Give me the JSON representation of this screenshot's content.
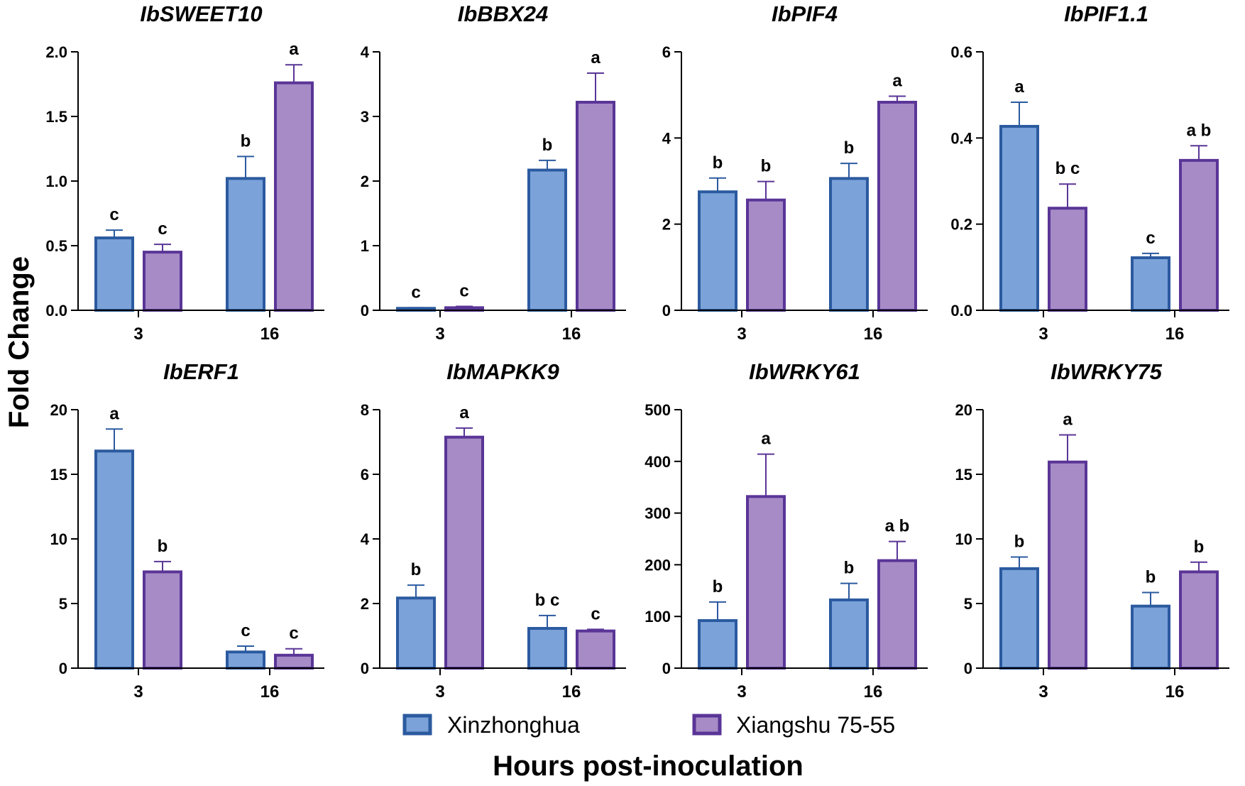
{
  "figure": {
    "ylabel": "Fold Change",
    "xlabel": "Hours post-inoculation"
  },
  "legend": {
    "placement": "bottom-center",
    "entries": [
      {
        "name": "Xinzhonghua",
        "fill": "#7ba3d9",
        "stroke": "#2b5a9f"
      },
      {
        "name": "Xiangshu 75-55",
        "fill": "#a68bc6",
        "stroke": "#5a3597"
      }
    ]
  },
  "chart_data": [
    {
      "type": "bar",
      "title": "IbSWEET10",
      "categories": [
        "3",
        "16"
      ],
      "ylim": [
        0,
        2.0
      ],
      "yticks": [
        "0.0",
        "0.5",
        "1.0",
        "1.5",
        "2.0"
      ],
      "series": [
        {
          "name": "Xinzhonghua",
          "values": [
            0.56,
            1.02
          ],
          "errors": [
            0.06,
            0.17
          ],
          "letters": [
            "c",
            "b"
          ]
        },
        {
          "name": "Xiangshu 75-55",
          "values": [
            0.45,
            1.76
          ],
          "errors": [
            0.06,
            0.14
          ],
          "letters": [
            "c",
            "a"
          ]
        }
      ]
    },
    {
      "type": "bar",
      "title": "IbBBX24",
      "categories": [
        "3",
        "16"
      ],
      "ylim": [
        0,
        4
      ],
      "yticks": [
        "0",
        "1",
        "2",
        "3",
        "4"
      ],
      "series": [
        {
          "name": "Xinzhonghua",
          "values": [
            0.03,
            2.17
          ],
          "errors": [
            0.01,
            0.15
          ],
          "letters": [
            "c",
            "b"
          ]
        },
        {
          "name": "Xiangshu 75-55",
          "values": [
            0.04,
            3.22
          ],
          "errors": [
            0.02,
            0.45
          ],
          "letters": [
            "c",
            "a"
          ]
        }
      ]
    },
    {
      "type": "bar",
      "title": "IbPIF4",
      "categories": [
        "3",
        "16"
      ],
      "ylim": [
        0,
        6
      ],
      "yticks": [
        "0",
        "2",
        "4",
        "6"
      ],
      "series": [
        {
          "name": "Xinzhonghua",
          "values": [
            2.75,
            3.06
          ],
          "errors": [
            0.32,
            0.35
          ],
          "letters": [
            "b",
            "b"
          ]
        },
        {
          "name": "Xiangshu 75-55",
          "values": [
            2.56,
            4.83
          ],
          "errors": [
            0.43,
            0.14
          ],
          "letters": [
            "b",
            "a"
          ]
        }
      ]
    },
    {
      "type": "bar",
      "title": "IbPIF1.1",
      "categories": [
        "3",
        "16"
      ],
      "ylim": [
        0,
        0.6
      ],
      "yticks": [
        "0.0",
        "0.2",
        "0.4",
        "0.6"
      ],
      "series": [
        {
          "name": "Xinzhonghua",
          "values": [
            0.427,
            0.122
          ],
          "errors": [
            0.056,
            0.01
          ],
          "letters": [
            "a",
            "c"
          ]
        },
        {
          "name": "Xiangshu 75-55",
          "values": [
            0.237,
            0.348
          ],
          "errors": [
            0.056,
            0.034
          ],
          "letters": [
            "b c",
            "a b"
          ]
        }
      ]
    },
    {
      "type": "bar",
      "title": "IbERF1",
      "categories": [
        "3",
        "16"
      ],
      "ylim": [
        0,
        20
      ],
      "yticks": [
        "0",
        "5",
        "10",
        "15",
        "20"
      ],
      "series": [
        {
          "name": "Xinzhonghua",
          "values": [
            16.8,
            1.25
          ],
          "errors": [
            1.7,
            0.45
          ],
          "letters": [
            "a",
            "c"
          ]
        },
        {
          "name": "Xiangshu 75-55",
          "values": [
            7.45,
            1.0
          ],
          "errors": [
            0.8,
            0.5
          ],
          "letters": [
            "b",
            "c"
          ]
        }
      ]
    },
    {
      "type": "bar",
      "title": "IbMAPKK9",
      "categories": [
        "3",
        "16"
      ],
      "ylim": [
        0,
        8
      ],
      "yticks": [
        "0",
        "2",
        "4",
        "6",
        "8"
      ],
      "series": [
        {
          "name": "Xinzhonghua",
          "values": [
            2.17,
            1.23
          ],
          "errors": [
            0.4,
            0.4
          ],
          "letters": [
            "b",
            "b c"
          ]
        },
        {
          "name": "Xiangshu 75-55",
          "values": [
            7.15,
            1.15
          ],
          "errors": [
            0.28,
            0.05
          ],
          "letters": [
            "a",
            "c"
          ]
        }
      ]
    },
    {
      "type": "bar",
      "title": "IbWRKY61",
      "categories": [
        "3",
        "16"
      ],
      "ylim": [
        0,
        500
      ],
      "yticks": [
        "0",
        "100",
        "200",
        "300",
        "400",
        "500"
      ],
      "series": [
        {
          "name": "Xinzhonghua",
          "values": [
            92,
            132
          ],
          "errors": [
            36,
            32
          ],
          "letters": [
            "b",
            "b"
          ]
        },
        {
          "name": "Xiangshu 75-55",
          "values": [
            332,
            208
          ],
          "errors": [
            82,
            37
          ],
          "letters": [
            "a",
            "a b"
          ]
        }
      ]
    },
    {
      "type": "bar",
      "title": "IbWRKY75",
      "categories": [
        "3",
        "16"
      ],
      "ylim": [
        0,
        20
      ],
      "yticks": [
        "0",
        "5",
        "10",
        "15",
        "20"
      ],
      "series": [
        {
          "name": "Xinzhonghua",
          "values": [
            7.7,
            4.8
          ],
          "errors": [
            0.9,
            1.05
          ],
          "letters": [
            "b",
            "b"
          ]
        },
        {
          "name": "Xiangshu 75-55",
          "values": [
            15.95,
            7.45
          ],
          "errors": [
            2.1,
            0.75
          ],
          "letters": [
            "a",
            "b"
          ]
        }
      ]
    }
  ]
}
